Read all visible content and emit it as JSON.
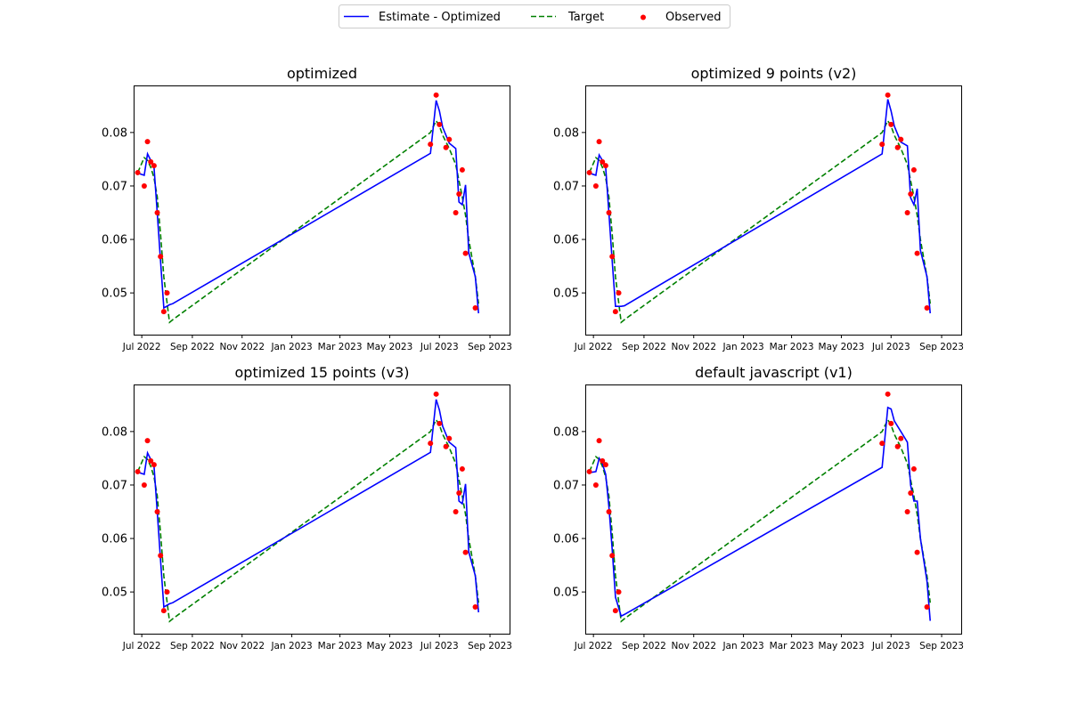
{
  "legend": {
    "location": "top-center",
    "entries": [
      {
        "label": "Estimate - Optimized",
        "style": "solid-line",
        "color": "#0000ff"
      },
      {
        "label": "Target",
        "style": "dashed-line",
        "color": "#008000"
      },
      {
        "label": "Observed",
        "style": "dot",
        "color": "#ff0000"
      }
    ]
  },
  "colors": {
    "estimate": "#0000ff",
    "target": "#008000",
    "observed": "#ff0000",
    "axes": "#000000",
    "background": "#ffffff"
  },
  "chart_data": [
    {
      "type": "line",
      "title": "optimized",
      "xlabel": "",
      "ylabel": "",
      "grid": false,
      "ylim": [
        0.0422,
        0.0888
      ],
      "xlim": [
        "2022-06-21",
        "2023-09-25"
      ],
      "x_ticks": [
        "Jul 2022",
        "Sep 2022",
        "Nov 2022",
        "Jan 2023",
        "Mar 2023",
        "May 2023",
        "Jul 2023",
        "Sep 2023"
      ],
      "y_ticks": [
        "0.05",
        "0.06",
        "0.07",
        "0.08"
      ],
      "series": [
        {
          "name": "Estimate - Optimized",
          "style": "solid",
          "x": [
            "2022-06-26",
            "2022-07-04",
            "2022-07-08",
            "2022-07-12",
            "2022-07-16",
            "2022-07-20",
            "2022-07-24",
            "2022-07-28",
            "2022-08-04",
            "2022-08-08",
            "2023-06-20",
            "2023-06-27",
            "2023-07-01",
            "2023-07-05",
            "2023-07-13",
            "2023-07-21",
            "2023-07-25",
            "2023-07-29",
            "2023-08-02",
            "2023-08-06",
            "2023-08-14",
            "2023-08-18"
          ],
          "y": [
            0.0724,
            0.072,
            0.076,
            0.0748,
            0.0735,
            0.065,
            0.056,
            0.0472,
            0.0478,
            0.048,
            0.0761,
            0.086,
            0.084,
            0.081,
            0.078,
            0.077,
            0.067,
            0.0665,
            0.0702,
            0.0575,
            0.053,
            0.0462
          ]
        },
        {
          "name": "Target",
          "style": "dashed",
          "x": [
            "2022-06-26",
            "2022-07-04",
            "2022-07-08",
            "2022-07-12",
            "2022-07-16",
            "2022-07-20",
            "2022-07-24",
            "2022-07-28",
            "2022-08-04",
            "2022-08-08",
            "2023-06-20",
            "2023-06-27",
            "2023-07-01",
            "2023-07-05",
            "2023-07-13",
            "2023-07-21",
            "2023-07-25",
            "2023-07-29",
            "2023-08-02",
            "2023-08-06",
            "2023-08-14",
            "2023-08-18"
          ],
          "y": [
            0.0725,
            0.0753,
            0.0748,
            0.0735,
            0.0715,
            0.068,
            0.061,
            0.053,
            0.0445,
            0.045,
            0.08,
            0.0822,
            0.0812,
            0.0795,
            0.077,
            0.074,
            0.071,
            0.068,
            0.0645,
            0.06,
            0.053,
            0.048
          ]
        }
      ],
      "observed": {
        "x": [
          "2022-06-26",
          "2022-07-04",
          "2022-07-08",
          "2022-07-12",
          "2022-07-16",
          "2022-07-20",
          "2022-07-24",
          "2022-07-28",
          "2022-08-01",
          "2023-06-20",
          "2023-06-27",
          "2023-07-01",
          "2023-07-09",
          "2023-07-13",
          "2023-07-21",
          "2023-07-25",
          "2023-07-29",
          "2023-08-02",
          "2023-08-14"
        ],
        "y": [
          0.0725,
          0.07,
          0.0783,
          0.0745,
          0.0738,
          0.065,
          0.0568,
          0.0465,
          0.05,
          0.0778,
          0.087,
          0.0815,
          0.0772,
          0.0787,
          0.065,
          0.0685,
          0.073,
          0.0574,
          0.0472
        ]
      }
    },
    {
      "type": "line",
      "title": "optimized 9 points (v2)",
      "xlabel": "",
      "ylabel": "",
      "grid": false,
      "ylim": [
        0.0422,
        0.0888
      ],
      "xlim": [
        "2022-06-21",
        "2023-09-25"
      ],
      "x_ticks": [
        "Jul 2022",
        "Sep 2022",
        "Nov 2022",
        "Jan 2023",
        "Mar 2023",
        "May 2023",
        "Jul 2023",
        "Sep 2023"
      ],
      "y_ticks": [
        "0.05",
        "0.06",
        "0.07",
        "0.08"
      ],
      "series": [
        {
          "name": "Estimate - Optimized",
          "style": "solid",
          "x": [
            "2022-06-26",
            "2022-07-04",
            "2022-07-08",
            "2022-07-12",
            "2022-07-16",
            "2022-07-20",
            "2022-07-24",
            "2022-07-28",
            "2022-08-04",
            "2022-08-08",
            "2023-06-20",
            "2023-06-27",
            "2023-07-01",
            "2023-07-05",
            "2023-07-13",
            "2023-07-21",
            "2023-07-25",
            "2023-07-29",
            "2023-08-02",
            "2023-08-06",
            "2023-08-14",
            "2023-08-18"
          ],
          "y": [
            0.0724,
            0.072,
            0.0758,
            0.0748,
            0.0735,
            0.065,
            0.056,
            0.0475,
            0.0475,
            0.0476,
            0.076,
            0.0862,
            0.084,
            0.0812,
            0.0782,
            0.0775,
            0.0678,
            0.0665,
            0.0695,
            0.058,
            0.053,
            0.0462
          ]
        },
        {
          "name": "Target",
          "style": "dashed",
          "x": [
            "2022-06-26",
            "2022-07-04",
            "2022-07-08",
            "2022-07-12",
            "2022-07-16",
            "2022-07-20",
            "2022-07-24",
            "2022-07-28",
            "2022-08-04",
            "2022-08-08",
            "2023-06-20",
            "2023-06-27",
            "2023-07-01",
            "2023-07-05",
            "2023-07-13",
            "2023-07-21",
            "2023-07-25",
            "2023-07-29",
            "2023-08-02",
            "2023-08-06",
            "2023-08-14",
            "2023-08-18"
          ],
          "y": [
            0.0725,
            0.0753,
            0.0748,
            0.0735,
            0.0715,
            0.068,
            0.061,
            0.053,
            0.0445,
            0.045,
            0.08,
            0.0822,
            0.0812,
            0.0795,
            0.077,
            0.074,
            0.071,
            0.068,
            0.0645,
            0.06,
            0.053,
            0.048
          ]
        }
      ],
      "observed": {
        "x": [
          "2022-06-26",
          "2022-07-04",
          "2022-07-08",
          "2022-07-12",
          "2022-07-16",
          "2022-07-20",
          "2022-07-24",
          "2022-07-28",
          "2022-08-01",
          "2023-06-20",
          "2023-06-27",
          "2023-07-01",
          "2023-07-09",
          "2023-07-13",
          "2023-07-21",
          "2023-07-25",
          "2023-07-29",
          "2023-08-02",
          "2023-08-14"
        ],
        "y": [
          0.0725,
          0.07,
          0.0783,
          0.0745,
          0.0738,
          0.065,
          0.0568,
          0.0465,
          0.05,
          0.0778,
          0.087,
          0.0815,
          0.0772,
          0.0787,
          0.065,
          0.0685,
          0.073,
          0.0574,
          0.0472
        ]
      }
    },
    {
      "type": "line",
      "title": "optimized 15 points (v3)",
      "xlabel": "",
      "ylabel": "",
      "grid": false,
      "ylim": [
        0.0422,
        0.0888
      ],
      "xlim": [
        "2022-06-21",
        "2023-09-25"
      ],
      "x_ticks": [
        "Jul 2022",
        "Sep 2022",
        "Nov 2022",
        "Jan 2023",
        "Mar 2023",
        "May 2023",
        "Jul 2023",
        "Sep 2023"
      ],
      "y_ticks": [
        "0.05",
        "0.06",
        "0.07",
        "0.08"
      ],
      "series": [
        {
          "name": "Estimate - Optimized",
          "style": "solid",
          "x": [
            "2022-06-26",
            "2022-07-04",
            "2022-07-08",
            "2022-07-12",
            "2022-07-16",
            "2022-07-20",
            "2022-07-24",
            "2022-07-28",
            "2022-08-04",
            "2022-08-08",
            "2023-06-20",
            "2023-06-27",
            "2023-07-01",
            "2023-07-05",
            "2023-07-13",
            "2023-07-21",
            "2023-07-25",
            "2023-07-29",
            "2023-08-02",
            "2023-08-06",
            "2023-08-14",
            "2023-08-18"
          ],
          "y": [
            0.0724,
            0.072,
            0.076,
            0.0748,
            0.0735,
            0.065,
            0.056,
            0.0472,
            0.0478,
            0.048,
            0.0761,
            0.086,
            0.084,
            0.081,
            0.078,
            0.077,
            0.067,
            0.0665,
            0.0702,
            0.0575,
            0.053,
            0.0462
          ]
        },
        {
          "name": "Target",
          "style": "dashed",
          "x": [
            "2022-06-26",
            "2022-07-04",
            "2022-07-08",
            "2022-07-12",
            "2022-07-16",
            "2022-07-20",
            "2022-07-24",
            "2022-07-28",
            "2022-08-04",
            "2022-08-08",
            "2023-06-20",
            "2023-06-27",
            "2023-07-01",
            "2023-07-05",
            "2023-07-13",
            "2023-07-21",
            "2023-07-25",
            "2023-07-29",
            "2023-08-02",
            "2023-08-06",
            "2023-08-14",
            "2023-08-18"
          ],
          "y": [
            0.0725,
            0.0753,
            0.0748,
            0.0735,
            0.0715,
            0.068,
            0.061,
            0.053,
            0.0445,
            0.045,
            0.08,
            0.0822,
            0.0812,
            0.0795,
            0.077,
            0.074,
            0.071,
            0.068,
            0.0645,
            0.06,
            0.053,
            0.048
          ]
        }
      ],
      "observed": {
        "x": [
          "2022-06-26",
          "2022-07-04",
          "2022-07-08",
          "2022-07-12",
          "2022-07-16",
          "2022-07-20",
          "2022-07-24",
          "2022-07-28",
          "2022-08-01",
          "2023-06-20",
          "2023-06-27",
          "2023-07-01",
          "2023-07-09",
          "2023-07-13",
          "2023-07-21",
          "2023-07-25",
          "2023-07-29",
          "2023-08-02",
          "2023-08-14"
        ],
        "y": [
          0.0725,
          0.07,
          0.0783,
          0.0745,
          0.0738,
          0.065,
          0.0568,
          0.0465,
          0.05,
          0.0778,
          0.087,
          0.0815,
          0.0772,
          0.0787,
          0.065,
          0.0685,
          0.073,
          0.0574,
          0.0472
        ]
      }
    },
    {
      "type": "line",
      "title": "default javascript (v1)",
      "xlabel": "",
      "ylabel": "",
      "grid": false,
      "ylim": [
        0.0422,
        0.0888
      ],
      "xlim": [
        "2022-06-21",
        "2023-09-25"
      ],
      "x_ticks": [
        "Jul 2022",
        "Sep 2022",
        "Nov 2022",
        "Jan 2023",
        "Mar 2023",
        "May 2023",
        "Jul 2023",
        "Sep 2023"
      ],
      "y_ticks": [
        "0.05",
        "0.06",
        "0.07",
        "0.08"
      ],
      "series": [
        {
          "name": "Estimate - Optimized",
          "style": "solid",
          "x": [
            "2022-06-26",
            "2022-07-04",
            "2022-07-08",
            "2022-07-12",
            "2022-07-16",
            "2022-07-20",
            "2022-07-24",
            "2022-07-28",
            "2022-08-04",
            "2022-08-08",
            "2023-06-20",
            "2023-06-27",
            "2023-07-01",
            "2023-07-05",
            "2023-07-13",
            "2023-07-21",
            "2023-07-25",
            "2023-07-29",
            "2023-08-02",
            "2023-08-06",
            "2023-08-14",
            "2023-08-18"
          ],
          "y": [
            0.0723,
            0.0725,
            0.075,
            0.074,
            0.072,
            0.066,
            0.058,
            0.049,
            0.0455,
            0.0458,
            0.0733,
            0.0845,
            0.0842,
            0.082,
            0.08,
            0.078,
            0.07,
            0.067,
            0.067,
            0.06,
            0.052,
            0.0446
          ]
        },
        {
          "name": "Target",
          "style": "dashed",
          "x": [
            "2022-06-26",
            "2022-07-04",
            "2022-07-08",
            "2022-07-12",
            "2022-07-16",
            "2022-07-20",
            "2022-07-24",
            "2022-07-28",
            "2022-08-04",
            "2022-08-08",
            "2023-06-20",
            "2023-06-27",
            "2023-07-01",
            "2023-07-05",
            "2023-07-13",
            "2023-07-21",
            "2023-07-25",
            "2023-07-29",
            "2023-08-02",
            "2023-08-06",
            "2023-08-14",
            "2023-08-18"
          ],
          "y": [
            0.0725,
            0.0753,
            0.0748,
            0.0735,
            0.0715,
            0.068,
            0.061,
            0.053,
            0.0445,
            0.045,
            0.08,
            0.0822,
            0.0812,
            0.0795,
            0.077,
            0.074,
            0.071,
            0.068,
            0.0645,
            0.06,
            0.053,
            0.048
          ]
        }
      ],
      "observed": {
        "x": [
          "2022-06-26",
          "2022-07-04",
          "2022-07-08",
          "2022-07-12",
          "2022-07-16",
          "2022-07-20",
          "2022-07-24",
          "2022-07-28",
          "2022-08-01",
          "2023-06-20",
          "2023-06-27",
          "2023-07-01",
          "2023-07-09",
          "2023-07-13",
          "2023-07-21",
          "2023-07-25",
          "2023-07-29",
          "2023-08-02",
          "2023-08-14"
        ],
        "y": [
          0.0725,
          0.07,
          0.0783,
          0.0745,
          0.0738,
          0.065,
          0.0568,
          0.0465,
          0.05,
          0.0778,
          0.087,
          0.0815,
          0.0772,
          0.0787,
          0.065,
          0.0685,
          0.073,
          0.0574,
          0.0472
        ]
      }
    }
  ]
}
